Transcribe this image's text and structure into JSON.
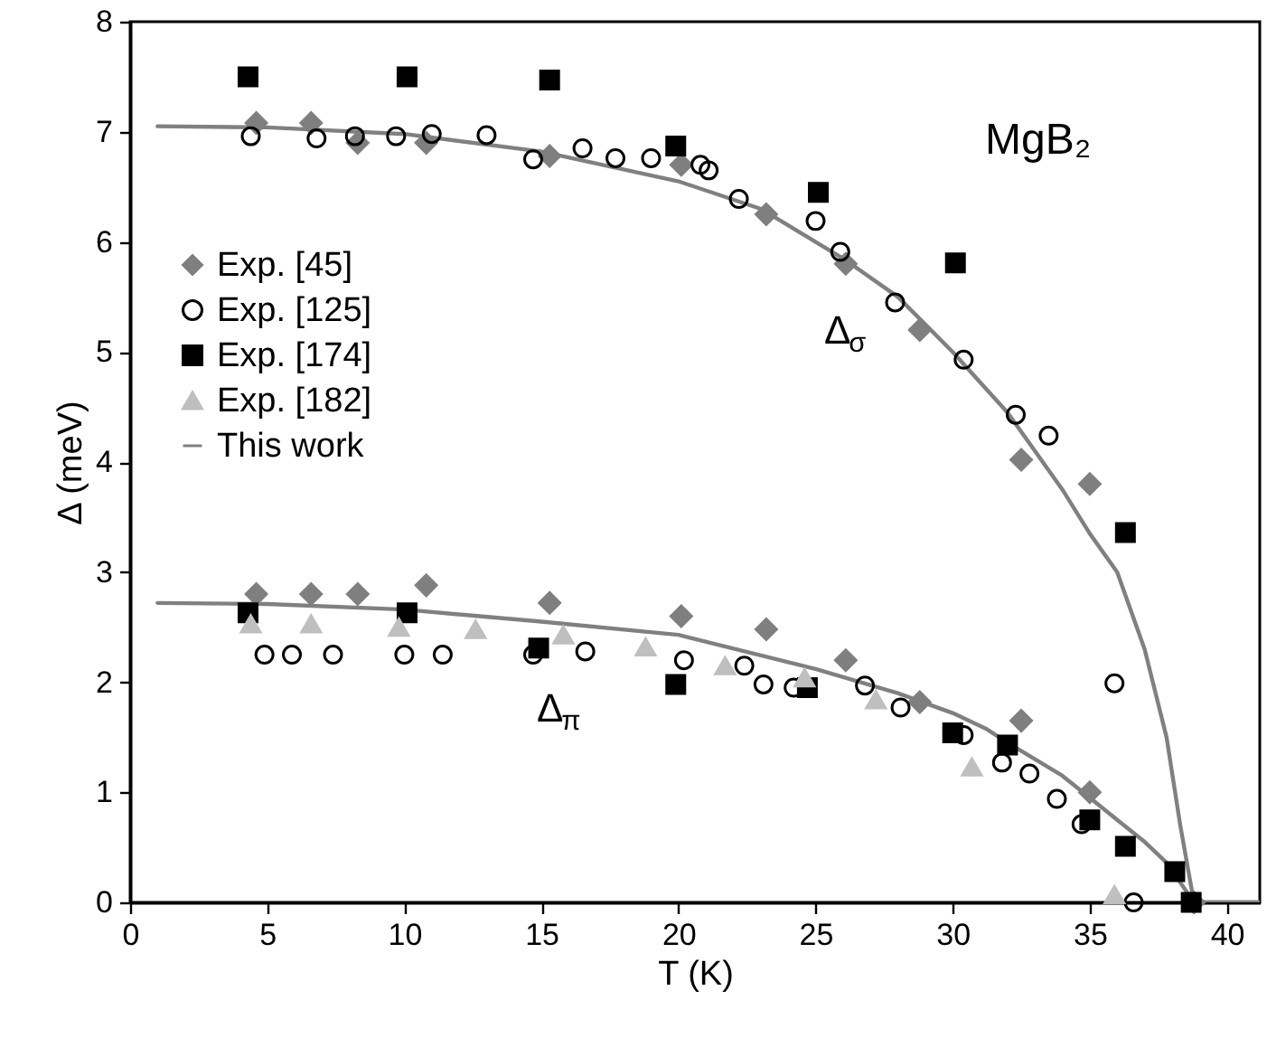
{
  "chart_data": {
    "type": "scatter",
    "xlabel": "T (K)",
    "ylabel": "Δ (meV)",
    "xlim": [
      0,
      41.2
    ],
    "ylim": [
      0,
      8
    ],
    "xticks": [
      0,
      5,
      10,
      15,
      20,
      25,
      30,
      35,
      40
    ],
    "yticks": [
      0,
      1,
      2,
      3,
      4,
      5,
      6,
      7,
      8
    ],
    "legend": "top left",
    "annotations": [
      "MgB₂",
      "Δ$_{σ}$",
      "Δ$_{π}$"
    ],
    "series": [
      {
        "name": "Exp. [45]",
        "marker": "diamond",
        "color": "#7f7f7f",
        "x": [
          4.6,
          6.6,
          8.3,
          10.8,
          15.3,
          20.1,
          23.2,
          26.1,
          28.8,
          32.5,
          35.0,
          4.6,
          6.6,
          8.3,
          10.8,
          15.3,
          20.1,
          23.2,
          26.1,
          28.8,
          32.5,
          35.0,
          38.8
        ],
        "values": [
          7.08,
          7.08,
          6.9,
          6.9,
          6.78,
          6.7,
          6.25,
          5.8,
          5.2,
          4.02,
          3.8,
          2.8,
          2.8,
          2.8,
          2.88,
          2.72,
          2.6,
          2.48,
          2.2,
          1.82,
          1.65,
          1.0,
          0.0
        ]
      },
      {
        "name": "Exp. [125]",
        "marker": "circle",
        "color": "#000000",
        "x": [
          4.4,
          6.8,
          8.2,
          9.7,
          11.0,
          13.0,
          14.7,
          16.5,
          17.7,
          19.0,
          20.8,
          21.1,
          22.2,
          25.0,
          25.9,
          27.9,
          30.4,
          32.3,
          33.5,
          35.9,
          4.9,
          5.9,
          7.4,
          10.0,
          11.4,
          14.7,
          16.6,
          20.2,
          22.4,
          23.1,
          24.2,
          26.8,
          28.1,
          30.4,
          31.8,
          32.8,
          33.8,
          34.7,
          36.6
        ],
        "values": [
          6.96,
          6.94,
          6.96,
          6.96,
          6.98,
          6.97,
          6.75,
          6.85,
          6.76,
          6.76,
          6.7,
          6.65,
          6.39,
          6.19,
          5.91,
          5.45,
          4.93,
          4.43,
          4.24,
          1.99,
          2.25,
          2.25,
          2.25,
          2.25,
          2.25,
          2.25,
          2.28,
          2.2,
          2.15,
          1.98,
          1.95,
          1.97,
          1.77,
          1.52,
          1.27,
          1.17,
          0.94,
          0.71,
          0.0
        ]
      },
      {
        "name": "Exp. [174]",
        "marker": "square",
        "color": "#000000",
        "x": [
          4.3,
          10.1,
          15.3,
          19.9,
          25.1,
          30.1,
          36.3,
          4.3,
          10.1,
          14.9,
          19.9,
          24.7,
          30.0,
          32.0,
          35.0,
          36.3,
          38.1,
          38.7
        ],
        "values": [
          7.5,
          7.5,
          7.47,
          6.87,
          6.45,
          5.81,
          3.36,
          2.63,
          2.63,
          2.31,
          1.98,
          1.95,
          1.54,
          1.43,
          0.75,
          0.51,
          0.28,
          0.0
        ]
      },
      {
        "name": "Exp. [182]",
        "marker": "triangle",
        "color": "#bfbfbf",
        "x": [
          4.4,
          6.6,
          9.8,
          12.6,
          15.8,
          18.8,
          21.7,
          24.6,
          27.2,
          30.7,
          35.9
        ],
        "values": [
          2.53,
          2.53,
          2.5,
          2.48,
          2.43,
          2.32,
          2.15,
          2.04,
          1.84,
          1.23,
          0.07
        ]
      },
      {
        "name": "This work",
        "type": "line",
        "color": "#808080",
        "x": [
          1,
          5,
          10,
          15,
          20,
          23,
          26,
          28,
          30,
          32,
          33,
          34,
          35,
          36,
          37,
          37.8,
          38.3,
          38.8,
          41.2
        ],
        "values": [
          7.05,
          7.04,
          6.98,
          6.82,
          6.55,
          6.3,
          5.85,
          5.5,
          5.0,
          4.45,
          4.1,
          3.75,
          3.35,
          3.0,
          2.3,
          1.5,
          0.7,
          0.0,
          0.0
        ]
      },
      {
        "type": "line",
        "color": "#808080",
        "x": [
          1,
          5,
          10,
          15,
          20,
          25,
          28,
          30,
          31.2,
          32,
          34,
          35,
          36,
          37,
          37.8,
          38.3,
          38.8,
          41.2
        ],
        "values": [
          2.72,
          2.71,
          2.66,
          2.55,
          2.43,
          2.12,
          1.9,
          1.72,
          1.58,
          1.45,
          1.15,
          0.95,
          0.75,
          0.55,
          0.36,
          0.18,
          0.0,
          0.0
        ]
      }
    ]
  }
}
